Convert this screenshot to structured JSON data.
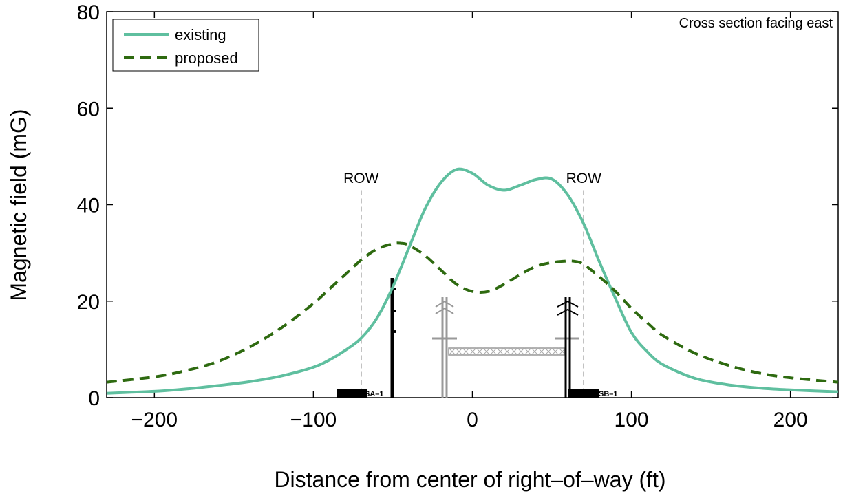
{
  "chart_data": {
    "type": "line",
    "title": "",
    "annotation": "Cross section facing east",
    "xlabel": "Distance from center of right–of–way (ft)",
    "ylabel": "Magnetic field (mG)",
    "xlim": [
      -230,
      230
    ],
    "ylim": [
      0,
      80
    ],
    "xticks": [
      -200,
      -100,
      0,
      100,
      200
    ],
    "xtick_labels": [
      "−200",
      "−100",
      "0",
      "100",
      "200"
    ],
    "yticks": [
      0,
      20,
      40,
      60,
      80
    ],
    "ytick_labels": [
      "0",
      "20",
      "40",
      "60",
      "80"
    ],
    "grid": false,
    "legend_position": "top-left",
    "row_markers": [
      {
        "x": -70,
        "label": "ROW"
      },
      {
        "x": 70,
        "label": "ROW"
      }
    ],
    "structure_labels": [
      {
        "x": -78,
        "label": "SA–1"
      },
      {
        "x": 78,
        "label": "SB–1"
      }
    ],
    "series": [
      {
        "name": "existing",
        "color": "#5fbf9f",
        "style": "solid",
        "x": [
          -230,
          -200,
          -180,
          -160,
          -140,
          -120,
          -100,
          -90,
          -80,
          -70,
          -60,
          -50,
          -40,
          -30,
          -20,
          -10,
          0,
          10,
          20,
          30,
          40,
          50,
          60,
          70,
          80,
          90,
          100,
          110,
          120,
          140,
          160,
          180,
          200,
          230
        ],
        "y": [
          0.9,
          1.3,
          1.8,
          2.5,
          3.3,
          4.5,
          6.3,
          7.8,
          9.8,
          12.3,
          16.5,
          23,
          31,
          39,
          44.5,
          47.3,
          46.5,
          44,
          43,
          44,
          45.2,
          45.3,
          42,
          36,
          28,
          20.5,
          13.5,
          9.5,
          6.8,
          4,
          2.7,
          2,
          1.6,
          1.2
        ]
      },
      {
        "name": "proposed",
        "color": "#2e6a10",
        "style": "dashed",
        "x": [
          -230,
          -200,
          -180,
          -160,
          -140,
          -120,
          -100,
          -90,
          -80,
          -70,
          -60,
          -50,
          -45,
          -40,
          -30,
          -20,
          -10,
          0,
          10,
          20,
          30,
          40,
          50,
          60,
          65,
          70,
          80,
          90,
          100,
          110,
          120,
          140,
          160,
          180,
          200,
          230
        ],
        "y": [
          3.2,
          4.3,
          5.6,
          7.5,
          10.5,
          14.5,
          19.5,
          22.5,
          25.5,
          28.5,
          30.8,
          31.9,
          32,
          31.6,
          29.5,
          26.5,
          23.5,
          22,
          22,
          23.5,
          25.5,
          27.2,
          28,
          28.3,
          28.2,
          27.6,
          25,
          22,
          18.5,
          15.5,
          12.8,
          9.2,
          6.8,
          5.1,
          4.1,
          3.2
        ]
      }
    ]
  }
}
